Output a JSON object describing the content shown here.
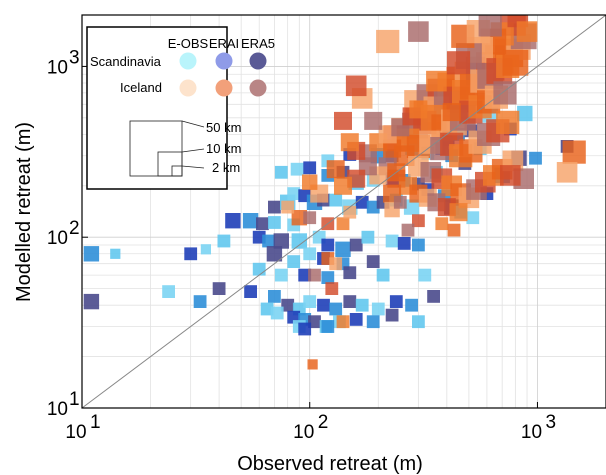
{
  "chart_data": {
    "type": "scatter",
    "title": "",
    "xlabel": "Observed retreat (m)",
    "ylabel": "Modelled retreat (m)",
    "x_scale": "log",
    "y_scale": "log",
    "xlim": [
      10,
      2000
    ],
    "ylim": [
      10,
      2000
    ],
    "grid": true,
    "one_to_one_line": true,
    "x_ticks": [
      {
        "value": 10,
        "base": "10",
        "exp": "1"
      },
      {
        "value": 100,
        "base": "10",
        "exp": "2"
      },
      {
        "value": 1000,
        "base": "10",
        "exp": "3"
      }
    ],
    "y_ticks": [
      {
        "value": 10,
        "base": "10",
        "exp": "1"
      },
      {
        "value": 100,
        "base": "10",
        "exp": "2"
      },
      {
        "value": 1000,
        "base": "10",
        "exp": "3"
      }
    ],
    "legend": {
      "placement": "top-left",
      "columns": [
        "E-OBS",
        "ERAI",
        "ERA5"
      ],
      "rows": [
        "Scandinavia",
        "Iceland"
      ],
      "colors": {
        "Scandinavia": [
          "#b9f4fb",
          "#8f9be8",
          "#5a5a96"
        ],
        "Iceland": [
          "#fde3cc",
          "#f2a07a",
          "#b98585"
        ]
      },
      "size_labels": [
        "50 km",
        "10 km",
        "2 km"
      ]
    },
    "series": [
      {
        "region": "Scandinavia",
        "color_range": [
          "#2f8fd8",
          "#63c8ee",
          "#1f3fb8",
          "#4a4a8c",
          "#7bd4f3"
        ],
        "points": [
          [
            11,
            80,
            4
          ],
          [
            11,
            42,
            4
          ],
          [
            14,
            80,
            2
          ],
          [
            24,
            48,
            3
          ],
          [
            30,
            80,
            3
          ],
          [
            33,
            42,
            3
          ],
          [
            40,
            50,
            3
          ],
          [
            42,
            95,
            3
          ],
          [
            35,
            85,
            2
          ],
          [
            46,
            125,
            4
          ],
          [
            55,
            125,
            4
          ],
          [
            62,
            120,
            3
          ],
          [
            70,
            122,
            3
          ],
          [
            85,
            118,
            3
          ],
          [
            60,
            100,
            3
          ],
          [
            66,
            95,
            3
          ],
          [
            75,
            95,
            4
          ],
          [
            90,
            95,
            4
          ],
          [
            110,
            100,
            3
          ],
          [
            120,
            90,
            3
          ],
          [
            140,
            85,
            4
          ],
          [
            160,
            90,
            3
          ],
          [
            180,
            100,
            3
          ],
          [
            230,
            95,
            3
          ],
          [
            260,
            92,
            3
          ],
          [
            300,
            90,
            3
          ],
          [
            70,
            80,
            4
          ],
          [
            85,
            72,
            3
          ],
          [
            100,
            80,
            3
          ],
          [
            115,
            75,
            3
          ],
          [
            140,
            70,
            3
          ],
          [
            190,
            72,
            3
          ],
          [
            60,
            65,
            3
          ],
          [
            75,
            60,
            3
          ],
          [
            95,
            60,
            3
          ],
          [
            120,
            58,
            3
          ],
          [
            150,
            62,
            3
          ],
          [
            210,
            60,
            3
          ],
          [
            320,
            60,
            3
          ],
          [
            55,
            48,
            3
          ],
          [
            70,
            45,
            3
          ],
          [
            80,
            40,
            3
          ],
          [
            90,
            38,
            3
          ],
          [
            100,
            42,
            3
          ],
          [
            115,
            40,
            3
          ],
          [
            130,
            38,
            3
          ],
          [
            150,
            42,
            3
          ],
          [
            170,
            40,
            3
          ],
          [
            200,
            38,
            3
          ],
          [
            240,
            42,
            3
          ],
          [
            280,
            40,
            3
          ],
          [
            350,
            45,
            3
          ],
          [
            65,
            38,
            3
          ],
          [
            72,
            36,
            3
          ],
          [
            85,
            34,
            3
          ],
          [
            95,
            33,
            3
          ],
          [
            105,
            32,
            3
          ],
          [
            118,
            30,
            3
          ],
          [
            135,
            32,
            3
          ],
          [
            160,
            33,
            3
          ],
          [
            190,
            32,
            3
          ],
          [
            230,
            35,
            3
          ],
          [
            300,
            32,
            3
          ],
          [
            90,
            30,
            3
          ],
          [
            95,
            29,
            3
          ],
          [
            120,
            30,
            3
          ],
          [
            70,
            150,
            3
          ],
          [
            80,
            160,
            4
          ],
          [
            85,
            180,
            3
          ],
          [
            95,
            175,
            3
          ],
          [
            105,
            160,
            4
          ],
          [
            115,
            165,
            3
          ],
          [
            130,
            165,
            3
          ],
          [
            150,
            150,
            4
          ],
          [
            170,
            160,
            3
          ],
          [
            190,
            150,
            3
          ],
          [
            210,
            160,
            3
          ],
          [
            240,
            165,
            3
          ],
          [
            280,
            150,
            4
          ],
          [
            330,
            190,
            3
          ],
          [
            390,
            175,
            3
          ],
          [
            420,
            150,
            4
          ],
          [
            460,
            140,
            3
          ],
          [
            520,
            130,
            3
          ],
          [
            600,
            180,
            3
          ],
          [
            700,
            230,
            4
          ],
          [
            830,
            290,
            4
          ],
          [
            75,
            240,
            3
          ],
          [
            88,
            250,
            3
          ],
          [
            100,
            255,
            3
          ],
          [
            120,
            230,
            3
          ],
          [
            140,
            240,
            3
          ],
          [
            160,
            210,
            4
          ],
          [
            190,
            215,
            3
          ],
          [
            230,
            220,
            3
          ],
          [
            260,
            215,
            3
          ],
          [
            300,
            205,
            3
          ],
          [
            360,
            240,
            3
          ],
          [
            120,
            280,
            3
          ],
          [
            150,
            305,
            3
          ],
          [
            200,
            300,
            4
          ],
          [
            230,
            300,
            3
          ],
          [
            280,
            330,
            3
          ],
          [
            330,
            310,
            3
          ],
          [
            380,
            330,
            3
          ],
          [
            420,
            300,
            3
          ],
          [
            480,
            270,
            3
          ],
          [
            560,
            330,
            3
          ],
          [
            280,
            370,
            4
          ],
          [
            400,
            380,
            4
          ],
          [
            450,
            400,
            3
          ],
          [
            510,
            420,
            3
          ],
          [
            880,
            530,
            4
          ],
          [
            620,
            520,
            4
          ],
          [
            760,
            430,
            3
          ],
          [
            980,
            290,
            3
          ],
          [
            1350,
            340,
            3
          ]
        ]
      },
      {
        "region": "Iceland",
        "color_range": [
          "#f07a2a",
          "#f6a46a",
          "#d24a2a",
          "#e8621a",
          "#a86a6a"
        ],
        "points": [
          [
            300,
            600,
            9
          ],
          [
            340,
            650,
            9
          ],
          [
            380,
            700,
            9
          ],
          [
            420,
            760,
            9
          ],
          [
            460,
            820,
            9
          ],
          [
            500,
            880,
            9
          ],
          [
            560,
            940,
            9
          ],
          [
            620,
            1000,
            9
          ],
          [
            680,
            1100,
            9
          ],
          [
            750,
            1200,
            9
          ],
          [
            820,
            1300,
            8
          ],
          [
            870,
            1500,
            8
          ],
          [
            780,
            1800,
            8
          ],
          [
            700,
            1550,
            7
          ],
          [
            640,
            1400,
            8
          ],
          [
            560,
            1250,
            8
          ],
          [
            500,
            1150,
            8
          ],
          [
            450,
            1050,
            7
          ],
          [
            300,
            480,
            8
          ],
          [
            330,
            520,
            9
          ],
          [
            360,
            560,
            8
          ],
          [
            400,
            600,
            8
          ],
          [
            440,
            640,
            8
          ],
          [
            480,
            700,
            8
          ],
          [
            520,
            760,
            8
          ],
          [
            570,
            820,
            7
          ],
          [
            620,
            880,
            8
          ],
          [
            680,
            940,
            8
          ],
          [
            740,
            1000,
            7
          ],
          [
            800,
            1050,
            8
          ],
          [
            260,
            420,
            8
          ],
          [
            290,
            450,
            8
          ],
          [
            320,
            470,
            7
          ],
          [
            350,
            500,
            8
          ],
          [
            390,
            440,
            8
          ],
          [
            430,
            470,
            8
          ],
          [
            470,
            500,
            8
          ],
          [
            510,
            540,
            7
          ],
          [
            560,
            580,
            7
          ],
          [
            610,
            620,
            7
          ],
          [
            660,
            660,
            7
          ],
          [
            720,
            700,
            7
          ],
          [
            240,
            380,
            8
          ],
          [
            270,
            370,
            7
          ],
          [
            300,
            340,
            7
          ],
          [
            340,
            360,
            7
          ],
          [
            380,
            330,
            7
          ],
          [
            420,
            350,
            7
          ],
          [
            460,
            300,
            7
          ],
          [
            510,
            320,
            7
          ],
          [
            560,
            360,
            7
          ],
          [
            610,
            400,
            7
          ],
          [
            670,
            420,
            7
          ],
          [
            740,
            470,
            7
          ],
          [
            260,
            300,
            6
          ],
          [
            300,
            260,
            6
          ],
          [
            340,
            240,
            6
          ],
          [
            380,
            220,
            6
          ],
          [
            420,
            200,
            6
          ],
          [
            460,
            180,
            6
          ],
          [
            500,
            170,
            6
          ],
          [
            540,
            190,
            6
          ],
          [
            590,
            210,
            6
          ],
          [
            640,
            230,
            6
          ],
          [
            700,
            250,
            6
          ],
          [
            780,
            280,
            6
          ],
          [
            220,
            260,
            5
          ],
          [
            240,
            220,
            5
          ],
          [
            270,
            200,
            5
          ],
          [
            300,
            180,
            5
          ],
          [
            330,
            170,
            5
          ],
          [
            360,
            160,
            5
          ],
          [
            400,
            150,
            5
          ],
          [
            450,
            140,
            5
          ],
          [
            230,
            180,
            5
          ],
          [
            200,
            230,
            5
          ],
          [
            180,
            260,
            5
          ],
          [
            160,
            220,
            5
          ],
          [
            140,
            200,
            5
          ],
          [
            130,
            250,
            5
          ],
          [
            110,
            180,
            5
          ],
          [
            180,
            310,
            5
          ],
          [
            160,
            320,
            5
          ],
          [
            200,
            360,
            5
          ],
          [
            230,
            330,
            5
          ],
          [
            220,
            400,
            5
          ],
          [
            250,
            440,
            5
          ],
          [
            280,
            510,
            5
          ],
          [
            300,
            560,
            5
          ],
          [
            420,
            540,
            5
          ],
          [
            170,
            650,
            6
          ],
          [
            190,
            480,
            5
          ],
          [
            140,
            480,
            5
          ],
          [
            150,
            360,
            5
          ],
          [
            240,
            240,
            5
          ],
          [
            220,
            1400,
            7
          ],
          [
            300,
            1600,
            6
          ],
          [
            160,
            770,
            6
          ],
          [
            360,
            820,
            6
          ],
          [
            470,
            1500,
            7
          ],
          [
            550,
            1600,
            7
          ],
          [
            620,
            1750,
            7
          ],
          [
            820,
            1950,
            6
          ],
          [
            900,
            1600,
            6
          ],
          [
            1450,
            315,
            7
          ],
          [
            1350,
            240,
            6
          ],
          [
            870,
            220,
            6
          ],
          [
            760,
            230,
            6
          ],
          [
            100,
            210,
            4
          ],
          [
            90,
            130,
            4
          ],
          [
            80,
            150,
            3
          ],
          [
            100,
            130,
            3
          ],
          [
            120,
            120,
            3
          ],
          [
            140,
            120,
            3
          ],
          [
            120,
            75,
            3
          ],
          [
            130,
            70,
            3
          ],
          [
            105,
            60,
            3
          ],
          [
            125,
            50,
            3
          ],
          [
            140,
            32,
            3
          ],
          [
            103,
            18,
            2
          ],
          [
            230,
            145,
            4
          ],
          [
            250,
            160,
            3
          ],
          [
            300,
            125,
            3
          ],
          [
            380,
            120,
            3
          ],
          [
            430,
            110,
            3
          ],
          [
            150,
            140,
            3
          ],
          [
            270,
            110,
            3
          ]
        ]
      }
    ]
  }
}
